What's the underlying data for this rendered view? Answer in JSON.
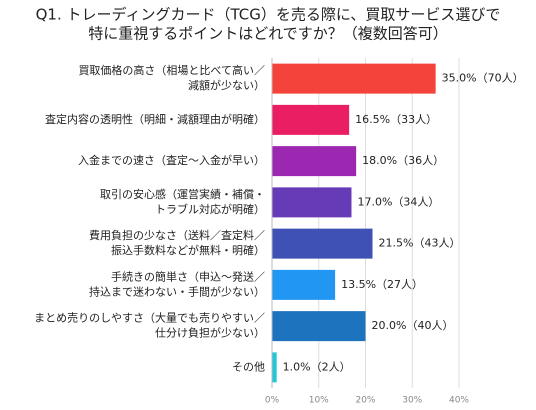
{
  "chart_data": {
    "type": "bar",
    "orientation": "horizontal",
    "title": [
      "Q1. トレーディングカード（TCG）を売る際に、買取サービス選びで",
      "特に重視するポイントはどれですか？（複数回答可）"
    ],
    "categories": [
      [
        "買取価格の高さ（相場と比べて高い／",
        "減額が少ない）"
      ],
      [
        "査定内容の透明性（明細・減額理由が明確）"
      ],
      [
        "入金までの速さ（査定〜入金が早い）"
      ],
      [
        "取引の安心感（運営実績・補償・",
        "トラブル対応が明確）"
      ],
      [
        "費用負担の少なさ（送料／査定料／",
        "振込手数料などが無料・明確）"
      ],
      [
        "手続きの簡単さ（申込〜発送／",
        "持込まで迷わない・手間が少ない）"
      ],
      [
        "まとめ売りのしやすさ（大量でも売りやすい／",
        "仕分け負担が少ない）"
      ],
      [
        "その他"
      ]
    ],
    "values": [
      35,
      16.5,
      18,
      17,
      21.5,
      13.5,
      20,
      1
    ],
    "value_labels": [
      "35.0%（70人）",
      "16.5%（33人）",
      "18.0%（36人）",
      "17.0%（34人）",
      "21.5%（43人）",
      "13.5%（27人）",
      "20.0%（40人）",
      "1.0%（2人）"
    ],
    "colors": [
      "#f4433a",
      "#ea1f63",
      "#9c27b0",
      "#673ab7",
      "#3f51b5",
      "#2196f3",
      "#1e73be",
      "#26c6da"
    ],
    "xlim": [
      0,
      40
    ],
    "xticks": [
      {
        "value": 0,
        "label": "0%"
      },
      {
        "value": 10,
        "label": "10%"
      },
      {
        "value": 20,
        "label": "20%"
      },
      {
        "value": 30,
        "label": "30%"
      },
      {
        "value": 40,
        "label": "40%"
      }
    ],
    "grid": true
  }
}
